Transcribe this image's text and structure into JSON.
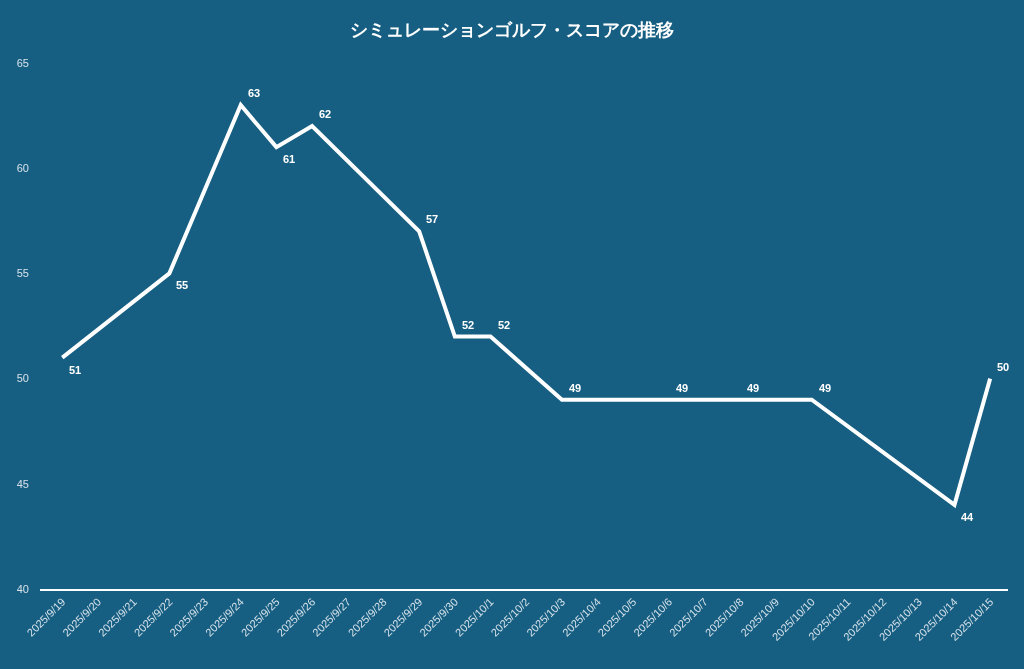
{
  "chart_data": {
    "type": "line",
    "title": "シミュレーションゴルフ・スコアの推移",
    "x": [
      "2025-09-19",
      "2025-09-22",
      "2025-09-24",
      "2025-09-25",
      "2025-09-26",
      "2025-09-29",
      "2025-09-30",
      "2025-10-01",
      "2025-10-03",
      "2025-10-06",
      "2025-10-08",
      "2025-10-10",
      "2025-10-14",
      "2025-10-15"
    ],
    "series": [
      {
        "color": "#ffffff",
        "values": [
          51,
          55,
          63,
          61,
          62,
          57,
          52,
          52,
          49,
          49,
          49,
          49,
          44,
          50
        ]
      }
    ],
    "xlim": [
      "2025-09-18T09:00",
      "2025-10-15T12:00"
    ],
    "xticks": [
      {
        "value": "2025-09-19",
        "label": "2025/9/19"
      },
      {
        "value": "2025-09-20",
        "label": "2025/9/20"
      },
      {
        "value": "2025-09-21",
        "label": "2025/9/21"
      },
      {
        "value": "2025-09-22",
        "label": "2025/9/22"
      },
      {
        "value": "2025-09-23",
        "label": "2025/9/23"
      },
      {
        "value": "2025-09-24",
        "label": "2025/9/24"
      },
      {
        "value": "2025-09-25",
        "label": "2025/9/25"
      },
      {
        "value": "2025-09-26",
        "label": "2025/9/26"
      },
      {
        "value": "2025-09-27",
        "label": "2025/9/27"
      },
      {
        "value": "2025-09-28",
        "label": "2025/9/28"
      },
      {
        "value": "2025-09-29",
        "label": "2025/9/29"
      },
      {
        "value": "2025-09-30",
        "label": "2025/9/30"
      },
      {
        "value": "2025-10-01",
        "label": "2025/10/1"
      },
      {
        "value": "2025-10-02",
        "label": "2025/10/2"
      },
      {
        "value": "2025-10-03",
        "label": "2025/10/3"
      },
      {
        "value": "2025-10-04",
        "label": "2025/10/4"
      },
      {
        "value": "2025-10-05",
        "label": "2025/10/5"
      },
      {
        "value": "2025-10-06",
        "label": "2025/10/6"
      },
      {
        "value": "2025-10-07",
        "label": "2025/10/7"
      },
      {
        "value": "2025-10-08",
        "label": "2025/10/8"
      },
      {
        "value": "2025-10-09",
        "label": "2025/10/9"
      },
      {
        "value": "2025-10-10",
        "label": "2025/10/10"
      },
      {
        "value": "2025-10-11",
        "label": "2025/10/11"
      },
      {
        "value": "2025-10-12",
        "label": "2025/10/12"
      },
      {
        "value": "2025-10-13",
        "label": "2025/10/13"
      },
      {
        "value": "2025-10-14",
        "label": "2025/10/14"
      },
      {
        "value": "2025-10-15",
        "label": "2025/10/15"
      }
    ],
    "ylim": [
      40,
      65
    ],
    "yticks": [
      40,
      45,
      50,
      55,
      60,
      65
    ],
    "data_labels": true,
    "grid": false
  }
}
